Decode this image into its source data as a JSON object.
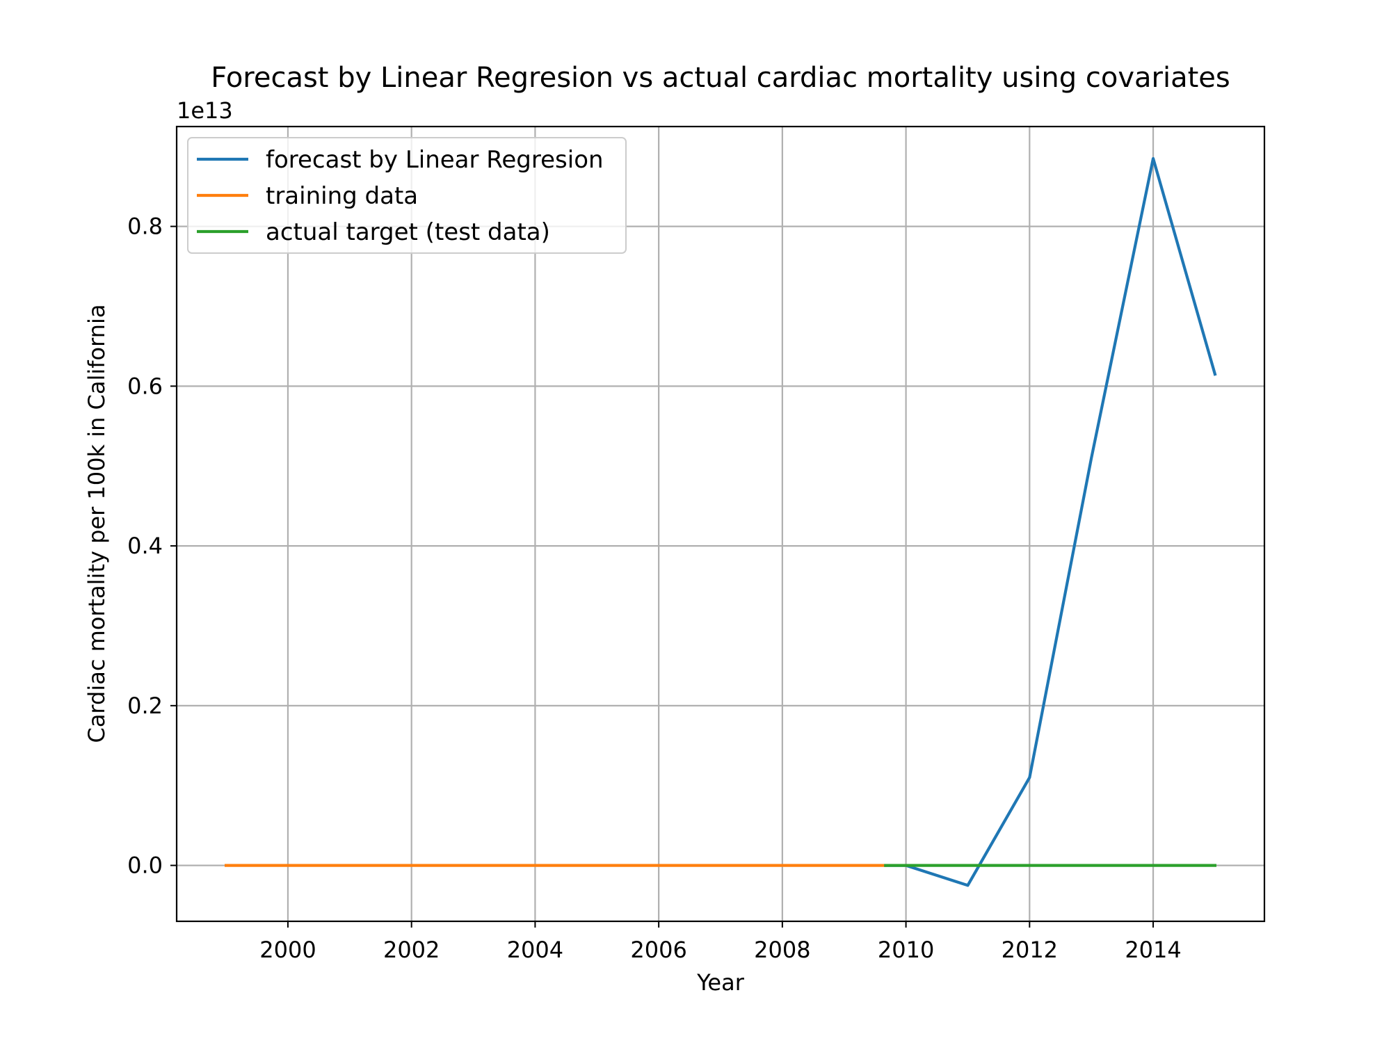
{
  "chart_data": {
    "type": "line",
    "title": "Forecast by Linear Regresion vs actual cardiac mortality using covariates",
    "xlabel": "Year",
    "ylabel": "Cardiac mortality per 100k in California",
    "y_offset_label": "1e13",
    "xlim": [
      1998.2,
      2015.8
    ],
    "ylim": [
      -0.07,
      0.925
    ],
    "x_ticks": [
      2000,
      2002,
      2004,
      2006,
      2008,
      2010,
      2012,
      2014
    ],
    "x_tick_labels": [
      "2000",
      "2002",
      "2004",
      "2006",
      "2008",
      "2010",
      "2012",
      "2014"
    ],
    "y_ticks": [
      0.0,
      0.2,
      0.4,
      0.6,
      0.8
    ],
    "y_tick_labels": [
      "0.0",
      "0.2",
      "0.4",
      "0.6",
      "0.8"
    ],
    "grid": true,
    "legend_position": "top-left",
    "series": [
      {
        "name": "forecast by Linear Regresion",
        "color": "#1f77b4",
        "x": [
          2009.67,
          2010,
          2011,
          2012,
          2013,
          2014,
          2015
        ],
        "y": [
          0.0,
          0.0,
          -0.025,
          0.11,
          0.51,
          0.885,
          0.615
        ]
      },
      {
        "name": "training data",
        "color": "#ff7f0e",
        "x": [
          1999,
          2009.67
        ],
        "y": [
          0.0,
          0.0
        ]
      },
      {
        "name": "actual target (test data)",
        "color": "#2ca02c",
        "x": [
          2009.67,
          2010,
          2011,
          2012,
          2013,
          2014,
          2015
        ],
        "y": [
          0.0,
          0.0,
          0.0,
          0.0,
          0.0,
          0.0,
          0.0
        ]
      }
    ]
  }
}
